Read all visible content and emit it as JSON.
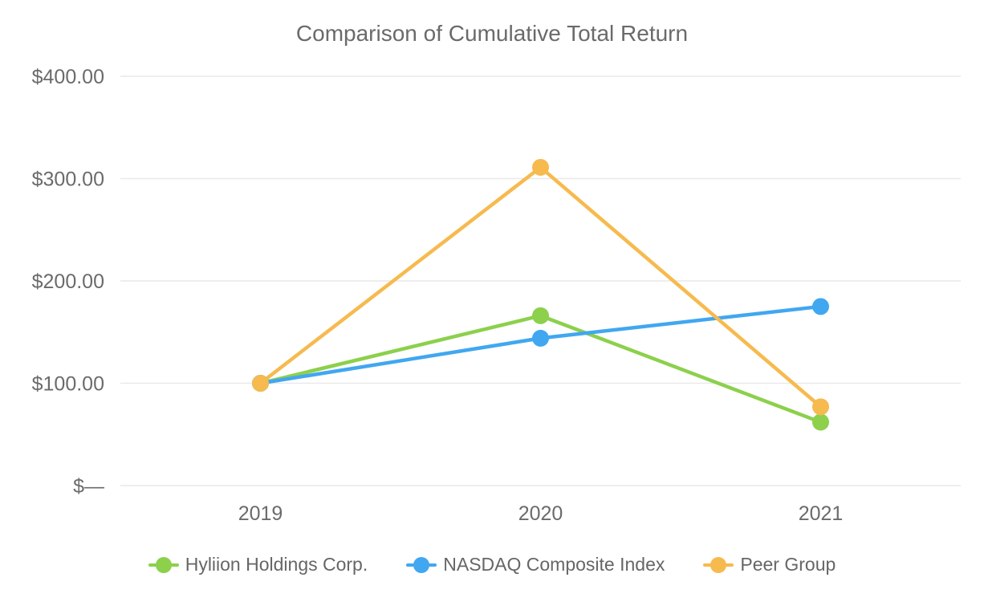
{
  "chart_data": {
    "type": "line",
    "title": "Comparison of Cumulative Total Return",
    "categories": [
      "2019",
      "2020",
      "2021"
    ],
    "series": [
      {
        "name": "Hyliion Holdings Corp.",
        "color": "#8CD04C",
        "values": [
          100,
          166,
          62
        ]
      },
      {
        "name": "NASDAQ Composite Index",
        "color": "#41A7F0",
        "values": [
          100,
          144,
          175
        ]
      },
      {
        "name": "Peer Group",
        "color": "#F6BA4E",
        "values": [
          100,
          311,
          77
        ]
      }
    ],
    "y_ticks": [
      {
        "value": 400,
        "label": "$400.00"
      },
      {
        "value": 300,
        "label": "$300.00"
      },
      {
        "value": 200,
        "label": "$200.00"
      },
      {
        "value": 100,
        "label": "$100.00"
      },
      {
        "value": 0,
        "label": "$—"
      }
    ],
    "ylim": [
      0,
      400
    ],
    "grid": "horizontal",
    "legend_position": "bottom",
    "axis_text_color": "#6B6B6B",
    "grid_color": "#E9E9E9",
    "background": "#FFFFFF"
  }
}
